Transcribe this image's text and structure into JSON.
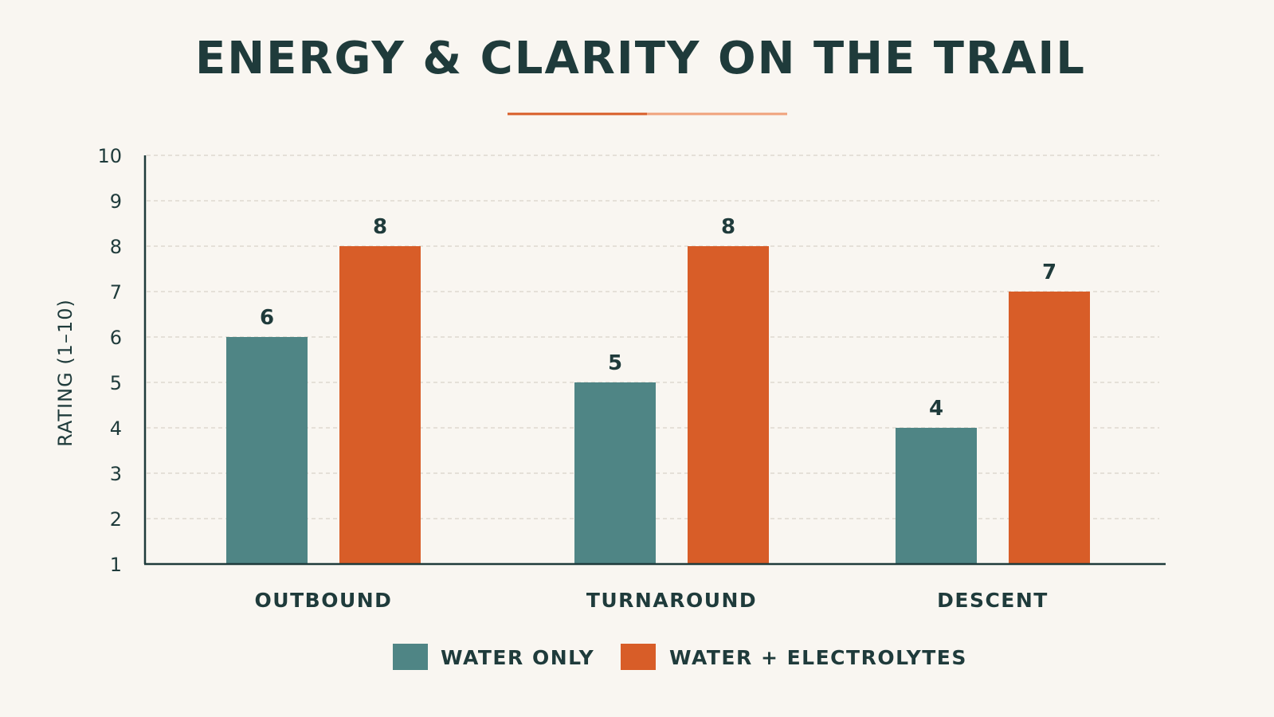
{
  "chart_data": {
    "type": "bar",
    "title": "ENERGY & CLARITY ON THE TRAIL",
    "xlabel": "",
    "ylabel": "RATING (1–10)",
    "ylim": [
      1,
      10
    ],
    "yticks": [
      1,
      2,
      3,
      4,
      5,
      6,
      7,
      8,
      9,
      10
    ],
    "grid": true,
    "legend_position": "bottom",
    "categories": [
      "OUTBOUND",
      "TURNAROUND",
      "DESCENT"
    ],
    "series": [
      {
        "name": "WATER ONLY",
        "values": [
          6,
          5,
          4
        ],
        "color": "#4f8585"
      },
      {
        "name": "WATER + ELECTROLYTES",
        "values": [
          8,
          8,
          7
        ],
        "color": "#d85d28"
      }
    ],
    "accent_colors": [
      "#d85d28",
      "#f0a27c"
    ]
  }
}
